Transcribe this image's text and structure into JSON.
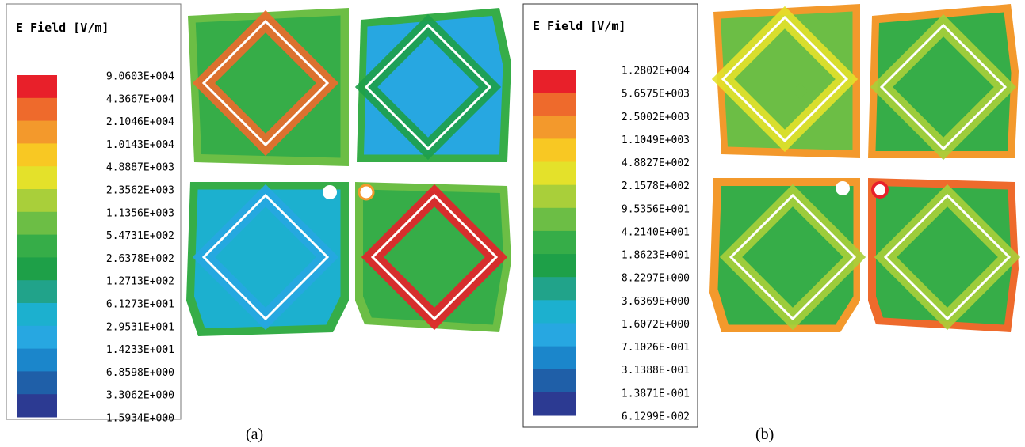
{
  "panels": [
    {
      "legend_title": "E Field [V/m]",
      "legend_labels": [
        "9.0603E+004",
        "4.3667E+004",
        "2.1046E+004",
        "1.0143E+004",
        "4.8887E+003",
        "2.3562E+003",
        "1.1356E+003",
        "5.4731E+002",
        "2.6378E+002",
        "1.2713E+002",
        "6.1273E+001",
        "2.9531E+001",
        "1.4233E+001",
        "6.8598E+000",
        "3.3062E+000",
        "1.5934E+000"
      ],
      "caption": "(a)"
    },
    {
      "legend_title": "E Field [V/m]",
      "legend_labels": [
        "1.2802E+004",
        "5.6575E+003",
        "2.5002E+003",
        "1.1049E+003",
        "4.8827E+002",
        "2.1578E+002",
        "9.5356E+001",
        "4.2140E+001",
        "1.8623E+001",
        "8.2297E+000",
        "3.6369E+000",
        "1.6072E+000",
        "7.1026E-001",
        "3.1388E-001",
        "1.3871E-001",
        "6.1299E-002"
      ],
      "caption": "(b)"
    }
  ]
}
